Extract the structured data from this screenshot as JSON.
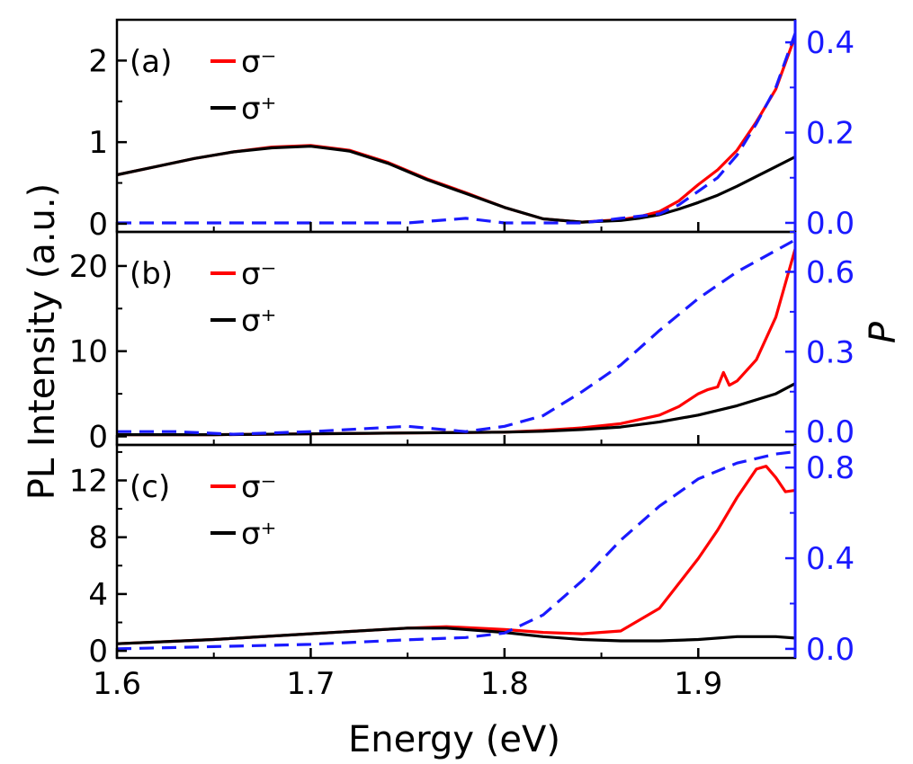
{
  "chart_data": {
    "type": "line",
    "figure": {
      "xlabel": "Energy (eV)",
      "ylabel_left": "PL Intensity (a.u.)",
      "ylabel_right": "P",
      "xlim": [
        1.6,
        1.95
      ],
      "xticks": [
        "1.6",
        "1.7",
        "1.8",
        "1.9"
      ]
    },
    "colors": {
      "sigma_minus": "#ff0000",
      "sigma_plus": "#000000",
      "polarization": "#1a1aff",
      "right_axis": "#1a1aff"
    },
    "panels": [
      {
        "label": "(a)",
        "ylim_left": [
          -0.1,
          2.5
        ],
        "yticks_left": [
          "0",
          "1",
          "2"
        ],
        "ylim_right": [
          -0.02,
          0.45
        ],
        "yticks_right": [
          "0.0",
          "0.2",
          "0.4"
        ],
        "legend": [
          "σ⁻",
          "σ⁺"
        ],
        "series": [
          {
            "name": "σ⁻",
            "color": "#ff0000",
            "dash": "solid",
            "axis": "left",
            "x": [
              1.6,
              1.62,
              1.64,
              1.66,
              1.68,
              1.7,
              1.72,
              1.74,
              1.76,
              1.78,
              1.8,
              1.82,
              1.84,
              1.86,
              1.87,
              1.88,
              1.89,
              1.9,
              1.91,
              1.92,
              1.93,
              1.94,
              1.95
            ],
            "y": [
              0.6,
              0.7,
              0.8,
              0.88,
              0.94,
              0.96,
              0.9,
              0.75,
              0.55,
              0.38,
              0.2,
              0.06,
              0.02,
              0.05,
              0.09,
              0.15,
              0.28,
              0.48,
              0.66,
              0.9,
              1.25,
              1.65,
              2.3
            ]
          },
          {
            "name": "σ⁺",
            "color": "#000000",
            "dash": "solid",
            "axis": "left",
            "x": [
              1.6,
              1.62,
              1.64,
              1.66,
              1.68,
              1.7,
              1.72,
              1.74,
              1.76,
              1.78,
              1.8,
              1.82,
              1.84,
              1.86,
              1.87,
              1.88,
              1.89,
              1.9,
              1.91,
              1.92,
              1.93,
              1.94,
              1.95
            ],
            "y": [
              0.6,
              0.7,
              0.8,
              0.88,
              0.93,
              0.95,
              0.89,
              0.74,
              0.54,
              0.37,
              0.2,
              0.06,
              0.02,
              0.04,
              0.07,
              0.11,
              0.18,
              0.26,
              0.35,
              0.46,
              0.58,
              0.7,
              0.82
            ]
          },
          {
            "name": "P",
            "color": "#1a1aff",
            "dash": "dashed",
            "axis": "right",
            "x": [
              1.6,
              1.65,
              1.7,
              1.75,
              1.78,
              1.8,
              1.82,
              1.84,
              1.86,
              1.88,
              1.89,
              1.9,
              1.91,
              1.92,
              1.93,
              1.94,
              1.95
            ],
            "y": [
              0.0,
              0.0,
              0.0,
              0.0,
              0.01,
              0.0,
              0.0,
              0.0,
              0.01,
              0.02,
              0.04,
              0.07,
              0.1,
              0.15,
              0.22,
              0.3,
              0.42
            ]
          }
        ]
      },
      {
        "label": "(b)",
        "ylim_left": [
          -1,
          24
        ],
        "yticks_left": [
          "0",
          "10",
          "20"
        ],
        "ylim_right": [
          -0.05,
          0.75
        ],
        "yticks_right": [
          "0.0",
          "0.3",
          "0.6"
        ],
        "legend": [
          "σ⁻",
          "σ⁺"
        ],
        "series": [
          {
            "name": "σ⁻",
            "color": "#ff0000",
            "dash": "solid",
            "axis": "left",
            "x": [
              1.6,
              1.65,
              1.7,
              1.75,
              1.8,
              1.82,
              1.84,
              1.86,
              1.88,
              1.89,
              1.9,
              1.905,
              1.91,
              1.913,
              1.916,
              1.92,
              1.93,
              1.94,
              1.95
            ],
            "y": [
              0.2,
              0.2,
              0.3,
              0.4,
              0.5,
              0.7,
              1.0,
              1.5,
              2.5,
              3.5,
              5.0,
              5.5,
              5.8,
              7.5,
              6.0,
              6.5,
              9.0,
              14.0,
              22.0
            ]
          },
          {
            "name": "σ⁺",
            "color": "#000000",
            "dash": "solid",
            "axis": "left",
            "x": [
              1.6,
              1.65,
              1.7,
              1.75,
              1.8,
              1.82,
              1.84,
              1.86,
              1.88,
              1.9,
              1.92,
              1.94,
              1.95
            ],
            "y": [
              0.2,
              0.2,
              0.3,
              0.4,
              0.5,
              0.6,
              0.8,
              1.1,
              1.7,
              2.5,
              3.6,
              5.0,
              6.2
            ]
          },
          {
            "name": "P",
            "color": "#1a1aff",
            "dash": "dashed",
            "axis": "right",
            "x": [
              1.6,
              1.63,
              1.66,
              1.7,
              1.75,
              1.78,
              1.8,
              1.82,
              1.84,
              1.86,
              1.88,
              1.9,
              1.91,
              1.92,
              1.93,
              1.94,
              1.95
            ],
            "y": [
              0.0,
              0.0,
              -0.01,
              0.0,
              0.02,
              0.0,
              0.02,
              0.06,
              0.15,
              0.25,
              0.38,
              0.5,
              0.55,
              0.6,
              0.64,
              0.68,
              0.72
            ]
          }
        ]
      },
      {
        "label": "(c)",
        "ylim_left": [
          -0.5,
          14.5
        ],
        "yticks_left": [
          "0",
          "4",
          "8",
          "12"
        ],
        "ylim_right": [
          -0.04,
          0.9
        ],
        "yticks_right": [
          "0.0",
          "0.4",
          "0.8"
        ],
        "legend": [
          "σ⁻",
          "σ⁺"
        ],
        "series": [
          {
            "name": "σ⁻",
            "color": "#ff0000",
            "dash": "solid",
            "axis": "left",
            "x": [
              1.6,
              1.65,
              1.7,
              1.75,
              1.77,
              1.8,
              1.82,
              1.84,
              1.86,
              1.88,
              1.9,
              1.91,
              1.92,
              1.93,
              1.935,
              1.94,
              1.945,
              1.95
            ],
            "y": [
              0.5,
              0.8,
              1.2,
              1.6,
              1.7,
              1.5,
              1.3,
              1.2,
              1.4,
              3.0,
              6.5,
              8.5,
              10.8,
              12.8,
              13.0,
              12.2,
              11.2,
              11.3
            ]
          },
          {
            "name": "σ⁺",
            "color": "#000000",
            "dash": "solid",
            "axis": "left",
            "x": [
              1.6,
              1.65,
              1.7,
              1.75,
              1.77,
              1.8,
              1.82,
              1.84,
              1.86,
              1.88,
              1.9,
              1.92,
              1.94,
              1.95
            ],
            "y": [
              0.5,
              0.8,
              1.2,
              1.6,
              1.6,
              1.3,
              1.0,
              0.8,
              0.7,
              0.7,
              0.8,
              1.0,
              1.0,
              0.9
            ]
          },
          {
            "name": "P",
            "color": "#1a1aff",
            "dash": "dashed",
            "axis": "right",
            "x": [
              1.6,
              1.65,
              1.7,
              1.75,
              1.78,
              1.8,
              1.82,
              1.84,
              1.86,
              1.88,
              1.9,
              1.92,
              1.94,
              1.95
            ],
            "y": [
              0.0,
              0.01,
              0.02,
              0.04,
              0.05,
              0.07,
              0.15,
              0.3,
              0.48,
              0.63,
              0.75,
              0.82,
              0.86,
              0.87
            ]
          }
        ]
      }
    ]
  }
}
